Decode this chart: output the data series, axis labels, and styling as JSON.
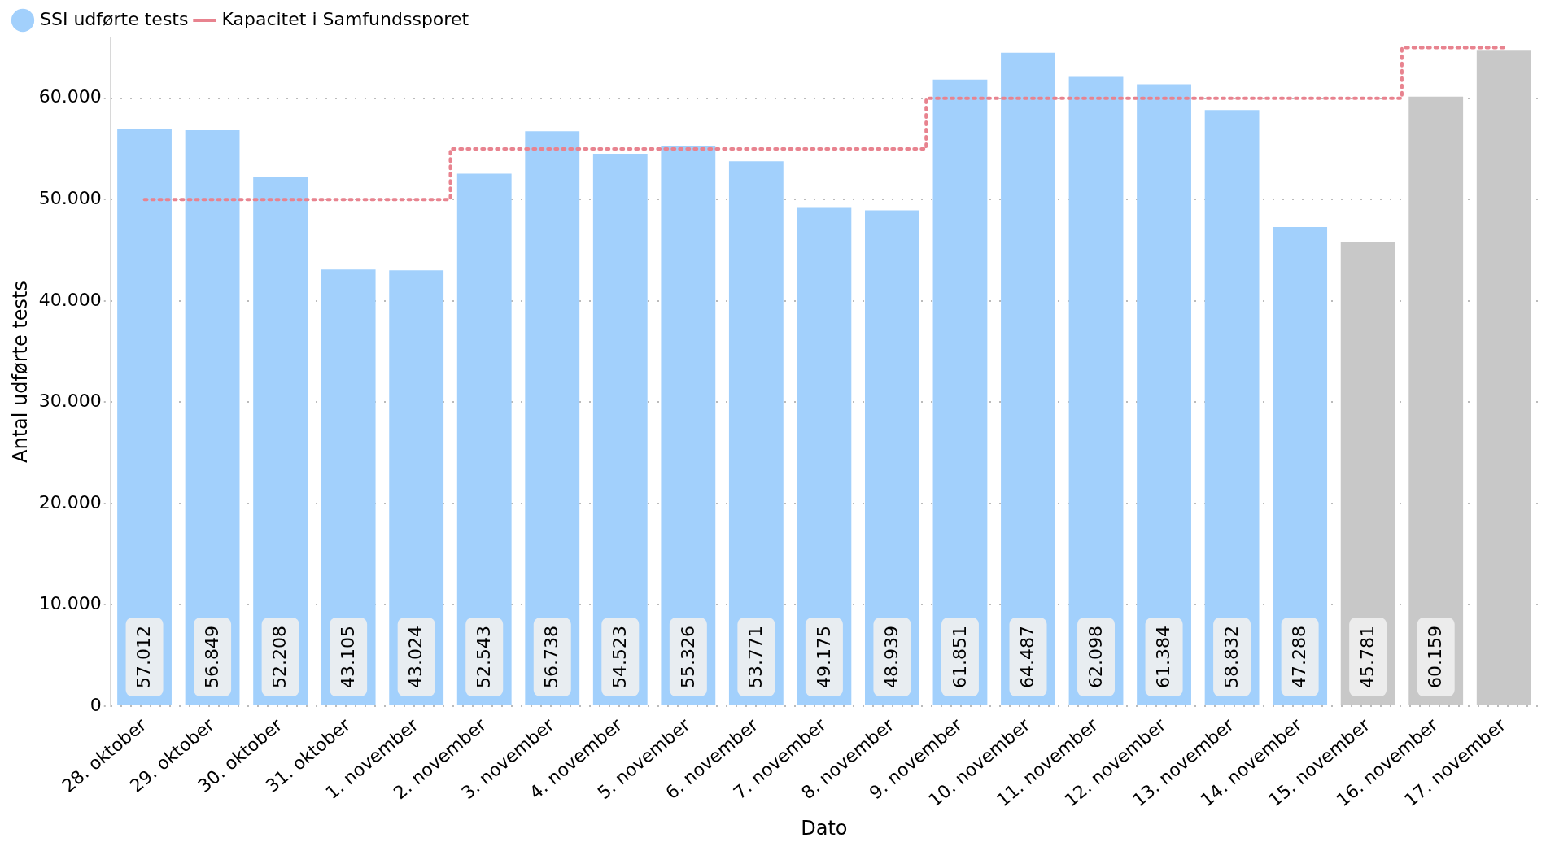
{
  "chart_data": {
    "type": "bar",
    "xlabel": "Dato",
    "ylabel": "Antal udførte tests",
    "categories": [
      "28. oktober",
      "29. oktober",
      "30. oktober",
      "31. oktober",
      "1. november",
      "2. november",
      "3. november",
      "4. november",
      "5. november",
      "6. november",
      "7. november",
      "8. november",
      "9. november",
      "10. november",
      "11. november",
      "12. november",
      "13. november",
      "14. november",
      "15. november",
      "16. november",
      "17. november"
    ],
    "series": [
      {
        "name": "SSI udførte tests",
        "color": "#a2d0fc",
        "colors": [
          "#a2d0fc",
          "#a2d0fc",
          "#a2d0fc",
          "#a2d0fc",
          "#a2d0fc",
          "#a2d0fc",
          "#a2d0fc",
          "#a2d0fc",
          "#a2d0fc",
          "#a2d0fc",
          "#a2d0fc",
          "#a2d0fc",
          "#a2d0fc",
          "#a2d0fc",
          "#a2d0fc",
          "#a2d0fc",
          "#a2d0fc",
          "#a2d0fc",
          "#c8c8c8",
          "#c8c8c8",
          "#c8c8c8"
        ],
        "values": [
          57012,
          56849,
          52208,
          43105,
          43024,
          52543,
          56738,
          54523,
          55326,
          53771,
          49175,
          48939,
          61851,
          64487,
          62098,
          61384,
          58832,
          47288,
          45781,
          60159,
          64700
        ],
        "value_labels": [
          "57.012",
          "56.849",
          "52.208",
          "43.105",
          "43.024",
          "52.543",
          "56.738",
          "54.523",
          "55.326",
          "53.771",
          "49.175",
          "48.939",
          "61.851",
          "64.487",
          "62.098",
          "61.384",
          "58.832",
          "47.288",
          "45.781",
          "60.159",
          null
        ]
      },
      {
        "name": "Kapacitet i Samfundssporet",
        "type": "step",
        "color": "#e8838f",
        "line_style": "dotted",
        "values": [
          50000,
          50000,
          50000,
          50000,
          50000,
          55000,
          55000,
          55000,
          55000,
          55000,
          55000,
          55000,
          60000,
          60000,
          60000,
          60000,
          60000,
          60000,
          60000,
          65000,
          65000
        ]
      }
    ],
    "ylim": [
      0,
      66000
    ],
    "yticks": [
      {
        "value": 0,
        "label": "0"
      },
      {
        "value": 10000,
        "label": "10.000"
      },
      {
        "value": 20000,
        "label": "20.000"
      },
      {
        "value": 30000,
        "label": "30.000"
      },
      {
        "value": 40000,
        "label": "40.000"
      },
      {
        "value": 50000,
        "label": "50.000"
      },
      {
        "value": 60000,
        "label": "60.000"
      }
    ],
    "grid": "y",
    "legend": "top left",
    "marker": "none"
  }
}
